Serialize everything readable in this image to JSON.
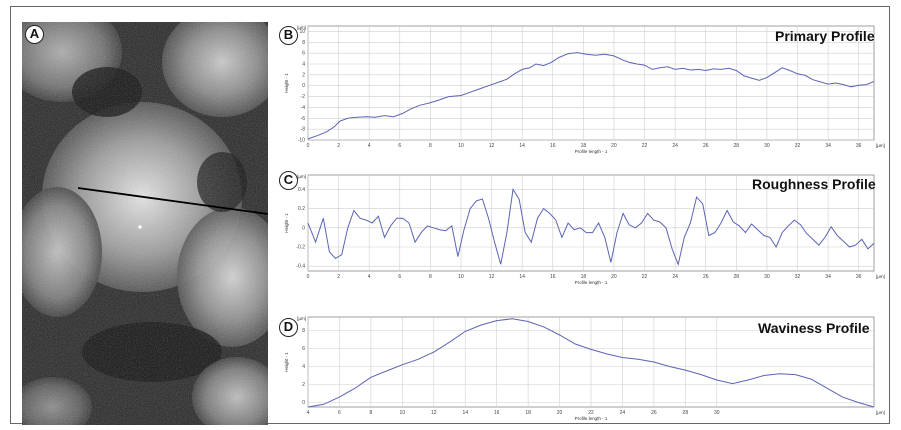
{
  "panels": {
    "a": {
      "letter": "A"
    },
    "b": {
      "letter": "B"
    },
    "c": {
      "letter": "C"
    },
    "d": {
      "letter": "D"
    }
  },
  "chart_data": [
    {
      "type": "line",
      "title": "Primary Profile",
      "xlabel": "Profile length - 1",
      "ylabel": "Height - 1",
      "x_unit": "[µm]",
      "y_unit": "[µm]",
      "xlim": [
        0,
        37
      ],
      "ylim": [
        -10,
        11
      ],
      "x_ticks": [
        0,
        2,
        4,
        6,
        8,
        10,
        12,
        14,
        16,
        18,
        20,
        22,
        24,
        26,
        28,
        30,
        32,
        34,
        36
      ],
      "y_ticks": [
        -10,
        -8,
        -6,
        -4,
        -2,
        0,
        2,
        4,
        6,
        8,
        10
      ],
      "series": [
        {
          "x": [
            0,
            0.6,
            1.2,
            1.7,
            2.1,
            2.6,
            3.2,
            3.8,
            4.4,
            5.0,
            5.6,
            6.2,
            6.7,
            7.3,
            7.9,
            8.5,
            9.2,
            10.0,
            10.6,
            11.2,
            11.8,
            12.4,
            13.0,
            13.5,
            14.0,
            14.5,
            14.9,
            15.4,
            15.9,
            16.4,
            17.0,
            17.6,
            18.2,
            18.8,
            19.4,
            20.0,
            20.6,
            21.0,
            21.5,
            22.0,
            22.5,
            23.0,
            23.5,
            24.0,
            24.5,
            25.0,
            25.5,
            26.0,
            26.5,
            27.0,
            27.5,
            28.0,
            28.5,
            29.0,
            29.5,
            30.0,
            30.5,
            31.0,
            31.5,
            32.0,
            32.5,
            33.0,
            33.5,
            34.0,
            34.5,
            35.0,
            35.5,
            36.0,
            36.5,
            37.0
          ],
          "y": [
            -9.8,
            -9.2,
            -8.5,
            -7.6,
            -6.5,
            -6.0,
            -5.8,
            -5.7,
            -5.8,
            -5.5,
            -5.7,
            -5.1,
            -4.3,
            -3.6,
            -3.2,
            -2.7,
            -2.0,
            -1.8,
            -1.2,
            -0.6,
            0.0,
            0.6,
            1.2,
            2.2,
            3.0,
            3.3,
            4.0,
            3.7,
            4.3,
            5.2,
            5.9,
            6.1,
            5.8,
            5.6,
            5.8,
            5.5,
            4.7,
            4.3,
            4.0,
            3.8,
            3.0,
            3.3,
            3.5,
            3.0,
            3.2,
            2.9,
            3.0,
            2.8,
            3.1,
            3.0,
            3.2,
            2.8,
            1.8,
            1.4,
            1.0,
            1.5,
            2.4,
            3.3,
            2.8,
            2.2,
            1.9,
            1.1,
            0.7,
            0.3,
            0.5,
            0.2,
            -0.2,
            0.1,
            0.2,
            0.8
          ]
        }
      ]
    },
    {
      "type": "line",
      "title": "Roughness Profile",
      "xlabel": "Profile length - 1",
      "ylabel": "Height - 1",
      "x_unit": "[µm]",
      "y_unit": "[µm]",
      "xlim": [
        0,
        37
      ],
      "ylim": [
        -0.45,
        0.55
      ],
      "x_ticks": [
        0,
        2,
        4,
        6,
        8,
        10,
        12,
        14,
        16,
        18,
        20,
        22,
        24,
        26,
        28,
        30,
        32,
        34,
        36
      ],
      "y_ticks": [
        -0.4,
        -0.2,
        0,
        0.2,
        0.4
      ],
      "series": [
        {
          "x": [
            0,
            0.5,
            1.0,
            1.4,
            1.8,
            2.2,
            2.6,
            3.0,
            3.4,
            3.8,
            4.2,
            4.6,
            5.0,
            5.4,
            5.8,
            6.2,
            6.6,
            7.0,
            7.4,
            7.8,
            8.2,
            8.6,
            9.0,
            9.4,
            9.8,
            10.2,
            10.6,
            11.0,
            11.4,
            11.8,
            12.2,
            12.6,
            13.0,
            13.4,
            13.8,
            14.2,
            14.6,
            15.0,
            15.4,
            15.8,
            16.2,
            16.6,
            17.0,
            17.4,
            17.8,
            18.2,
            18.6,
            19.0,
            19.4,
            19.8,
            20.2,
            20.6,
            21.0,
            21.4,
            21.8,
            22.2,
            22.6,
            23.0,
            23.4,
            23.8,
            24.2,
            24.6,
            25.0,
            25.4,
            25.8,
            26.2,
            26.6,
            27.0,
            27.4,
            27.8,
            28.2,
            28.6,
            29.0,
            29.4,
            29.8,
            30.2,
            30.6,
            31.0,
            31.4,
            31.8,
            32.2,
            32.6,
            33.0,
            33.4,
            33.8,
            34.2,
            34.6,
            35.0,
            35.4,
            35.8,
            36.2,
            36.6,
            37.0
          ],
          "y": [
            0.05,
            -0.15,
            0.1,
            -0.25,
            -0.32,
            -0.28,
            0.0,
            0.18,
            0.1,
            0.08,
            0.05,
            0.12,
            -0.1,
            0.02,
            0.1,
            0.1,
            0.05,
            -0.15,
            -0.05,
            0.02,
            0.0,
            -0.02,
            -0.03,
            0.02,
            -0.3,
            -0.02,
            0.2,
            0.28,
            0.3,
            0.1,
            -0.15,
            -0.38,
            -0.05,
            0.4,
            0.3,
            -0.05,
            -0.15,
            0.1,
            0.2,
            0.15,
            0.08,
            -0.1,
            0.05,
            -0.02,
            0.0,
            -0.05,
            -0.05,
            0.05,
            -0.1,
            -0.36,
            -0.05,
            0.15,
            0.03,
            0.0,
            0.05,
            0.15,
            0.08,
            0.06,
            0.0,
            -0.22,
            -0.38,
            -0.1,
            0.05,
            0.32,
            0.25,
            -0.08,
            -0.05,
            0.05,
            0.18,
            0.06,
            0.02,
            -0.05,
            0.04,
            -0.02,
            -0.08,
            -0.1,
            -0.2,
            -0.05,
            0.02,
            0.08,
            0.03,
            -0.06,
            -0.12,
            -0.18,
            -0.1,
            0.01,
            -0.08,
            -0.14,
            -0.2,
            -0.18,
            -0.12,
            -0.22,
            -0.16
          ]
        }
      ]
    },
    {
      "type": "line",
      "title": "Waviness Profile",
      "xlabel": "Profile length - 1",
      "ylabel": "Height - 1",
      "x_unit": "[µm]",
      "y_unit": "[µm]",
      "xlim": [
        4,
        40
      ],
      "ylim": [
        -0.5,
        9.5
      ],
      "x_ticks": [
        4,
        6,
        8,
        10,
        12,
        14,
        16,
        18,
        20,
        22,
        24,
        26,
        28,
        30
      ],
      "y_ticks": [
        0,
        2,
        4,
        6,
        8
      ],
      "series": [
        {
          "x": [
            4.0,
            5.0,
            6.0,
            7.0,
            8.0,
            9.0,
            10.0,
            11.0,
            12.0,
            13.0,
            14.0,
            15.0,
            16.0,
            17.0,
            18.0,
            19.0,
            20.0,
            21.0,
            22.0,
            23.0,
            24.0,
            25.0,
            26.0,
            27.0,
            28.0,
            29.0,
            30.0,
            31.0,
            32.0,
            33.0,
            34.0,
            35.0,
            36.0,
            37.0,
            38.0,
            39.0,
            40.0
          ],
          "y": [
            -0.5,
            -0.2,
            0.6,
            1.6,
            2.8,
            3.5,
            4.2,
            4.8,
            5.6,
            6.7,
            7.9,
            8.6,
            9.1,
            9.3,
            9.0,
            8.4,
            7.5,
            6.5,
            5.9,
            5.4,
            5.0,
            4.8,
            4.5,
            4.0,
            3.6,
            3.1,
            2.5,
            2.1,
            2.5,
            3.0,
            3.2,
            3.1,
            2.6,
            1.6,
            0.6,
            0.0,
            -0.5
          ]
        }
      ]
    }
  ]
}
